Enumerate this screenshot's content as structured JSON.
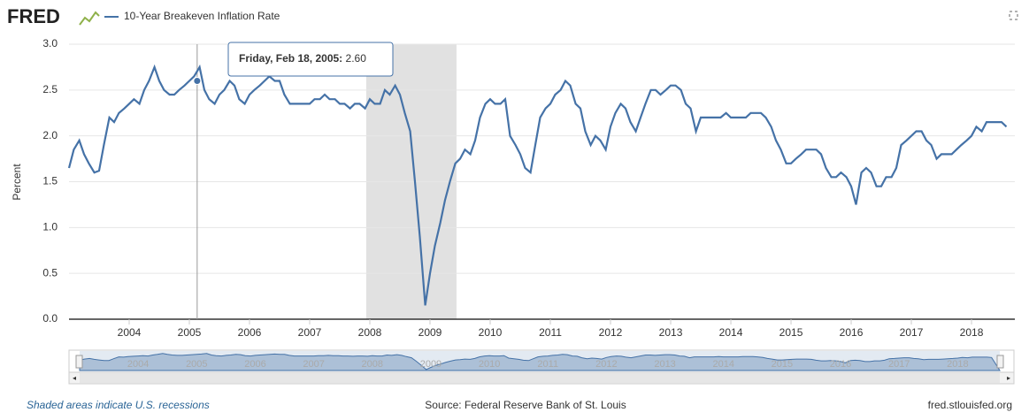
{
  "chart_data": {
    "type": "line",
    "brand": "FRED",
    "y_label": "Percent",
    "recession_note": "Shaded areas indicate U.S. recessions",
    "source": "Source: Federal Reserve Bank of St. Louis",
    "site": "fred.stlouisfed.org",
    "xlim": [
      2003.0,
      2018.72
    ],
    "xticks": [
      2004,
      2005,
      2006,
      2007,
      2008,
      2009,
      2010,
      2011,
      2012,
      2013,
      2014,
      2015,
      2016,
      2017,
      2018
    ],
    "ylim": [
      0,
      3
    ],
    "yticks": [
      {
        "value": 0,
        "label": "0.0"
      },
      0.5,
      {
        "value": 1,
        "label": "1.0"
      },
      1.5,
      {
        "value": 2,
        "label": "2.0"
      },
      2.5,
      {
        "value": 3,
        "label": "3.0"
      }
    ],
    "grid": true,
    "recessions": [
      [
        2007.94,
        2009.44
      ]
    ],
    "recession_color": "#e1e1e1",
    "tooltip": {
      "label": "Friday, Feb 18, 2005:",
      "x": 2005.13,
      "value": 2.6,
      "value_label": "2.60"
    },
    "x": [
      2003.0,
      2003.08,
      2003.17,
      2003.25,
      2003.33,
      2003.42,
      2003.5,
      2003.58,
      2003.67,
      2003.75,
      2003.83,
      2003.92,
      2004.0,
      2004.08,
      2004.17,
      2004.25,
      2004.33,
      2004.42,
      2004.5,
      2004.58,
      2004.67,
      2004.75,
      2004.83,
      2004.92,
      2005.0,
      2005.08,
      2005.17,
      2005.25,
      2005.33,
      2005.42,
      2005.5,
      2005.58,
      2005.67,
      2005.75,
      2005.83,
      2005.92,
      2006.0,
      2006.08,
      2006.17,
      2006.25,
      2006.33,
      2006.42,
      2006.5,
      2006.58,
      2006.67,
      2006.75,
      2006.83,
      2006.92,
      2007.0,
      2007.08,
      2007.17,
      2007.25,
      2007.33,
      2007.42,
      2007.5,
      2007.58,
      2007.67,
      2007.75,
      2007.83,
      2007.92,
      2008.0,
      2008.08,
      2008.17,
      2008.25,
      2008.33,
      2008.42,
      2008.5,
      2008.58,
      2008.67,
      2008.75,
      2008.83,
      2008.92,
      2009.0,
      2009.08,
      2009.17,
      2009.25,
      2009.33,
      2009.42,
      2009.5,
      2009.58,
      2009.67,
      2009.75,
      2009.83,
      2009.92,
      2010.0,
      2010.08,
      2010.17,
      2010.25,
      2010.33,
      2010.42,
      2010.5,
      2010.58,
      2010.67,
      2010.75,
      2010.83,
      2010.92,
      2011.0,
      2011.08,
      2011.17,
      2011.25,
      2011.33,
      2011.42,
      2011.5,
      2011.58,
      2011.67,
      2011.75,
      2011.83,
      2011.92,
      2012.0,
      2012.08,
      2012.17,
      2012.25,
      2012.33,
      2012.42,
      2012.5,
      2012.58,
      2012.67,
      2012.75,
      2012.83,
      2012.92,
      2013.0,
      2013.08,
      2013.17,
      2013.25,
      2013.33,
      2013.42,
      2013.5,
      2013.58,
      2013.67,
      2013.75,
      2013.83,
      2013.92,
      2014.0,
      2014.08,
      2014.17,
      2014.25,
      2014.33,
      2014.42,
      2014.5,
      2014.58,
      2014.67,
      2014.75,
      2014.83,
      2014.92,
      2015.0,
      2015.08,
      2015.17,
      2015.25,
      2015.33,
      2015.42,
      2015.5,
      2015.58,
      2015.67,
      2015.75,
      2015.83,
      2015.92,
      2016.0,
      2016.08,
      2016.17,
      2016.25,
      2016.33,
      2016.42,
      2016.5,
      2016.58,
      2016.67,
      2016.75,
      2016.83,
      2016.92,
      2017.0,
      2017.08,
      2017.17,
      2017.25,
      2017.33,
      2017.42,
      2017.5,
      2017.58,
      2017.67,
      2017.75,
      2017.83,
      2017.92,
      2018.0,
      2018.08,
      2018.17,
      2018.25,
      2018.33,
      2018.42,
      2018.5,
      2018.58
    ],
    "series": [
      {
        "name": "10-Year Breakeven Inflation Rate",
        "color": "#4572a7",
        "values": [
          1.65,
          1.85,
          1.95,
          1.8,
          1.7,
          1.6,
          1.62,
          1.9,
          2.2,
          2.15,
          2.25,
          2.3,
          2.35,
          2.4,
          2.35,
          2.5,
          2.6,
          2.75,
          2.6,
          2.5,
          2.45,
          2.45,
          2.5,
          2.55,
          2.6,
          2.65,
          2.75,
          2.5,
          2.4,
          2.35,
          2.45,
          2.5,
          2.6,
          2.55,
          2.4,
          2.35,
          2.45,
          2.5,
          2.55,
          2.6,
          2.65,
          2.6,
          2.6,
          2.45,
          2.35,
          2.35,
          2.35,
          2.35,
          2.35,
          2.4,
          2.4,
          2.45,
          2.4,
          2.4,
          2.35,
          2.35,
          2.3,
          2.35,
          2.35,
          2.3,
          2.4,
          2.35,
          2.35,
          2.5,
          2.45,
          2.55,
          2.45,
          2.25,
          2.05,
          1.5,
          0.9,
          0.15,
          0.5,
          0.8,
          1.05,
          1.3,
          1.5,
          1.7,
          1.75,
          1.85,
          1.8,
          1.95,
          2.2,
          2.35,
          2.4,
          2.35,
          2.35,
          2.4,
          2.0,
          1.9,
          1.8,
          1.65,
          1.6,
          1.9,
          2.2,
          2.3,
          2.35,
          2.45,
          2.5,
          2.6,
          2.55,
          2.35,
          2.3,
          2.05,
          1.9,
          2.0,
          1.95,
          1.85,
          2.1,
          2.25,
          2.35,
          2.3,
          2.15,
          2.05,
          2.2,
          2.35,
          2.5,
          2.5,
          2.45,
          2.5,
          2.55,
          2.55,
          2.5,
          2.35,
          2.3,
          2.05,
          2.2,
          2.2,
          2.2,
          2.2,
          2.2,
          2.25,
          2.2,
          2.2,
          2.2,
          2.2,
          2.25,
          2.25,
          2.25,
          2.2,
          2.1,
          1.95,
          1.85,
          1.7,
          1.7,
          1.75,
          1.8,
          1.85,
          1.85,
          1.85,
          1.8,
          1.65,
          1.55,
          1.55,
          1.6,
          1.55,
          1.45,
          1.25,
          1.6,
          1.65,
          1.6,
          1.45,
          1.45,
          1.55,
          1.55,
          1.65,
          1.9,
          1.95,
          2.0,
          2.05,
          2.05,
          1.95,
          1.9,
          1.75,
          1.8,
          1.8,
          1.8,
          1.85,
          1.9,
          1.95,
          2.0,
          2.1,
          2.05,
          2.15,
          2.15,
          2.15,
          2.15,
          2.1
        ]
      }
    ]
  }
}
